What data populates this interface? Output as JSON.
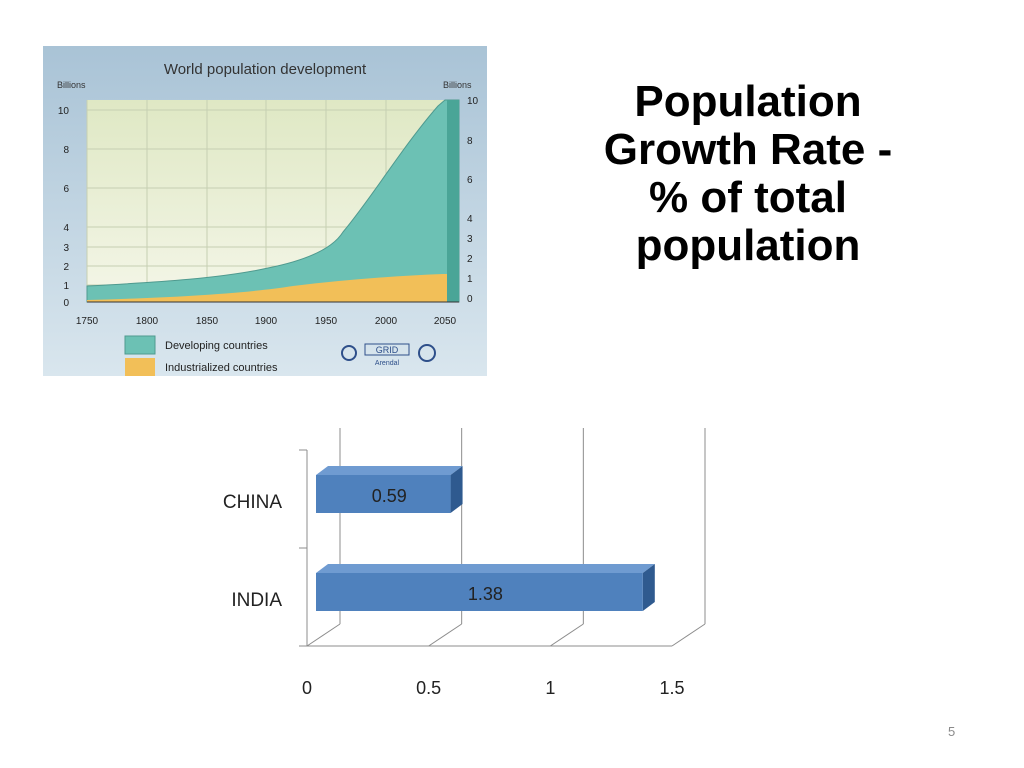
{
  "slide": {
    "title_lines": [
      "Population",
      "Growth Rate -",
      "% of total",
      "population"
    ],
    "page_number": "5"
  },
  "population_image": {
    "title": "World population development",
    "left_unit": "Billions",
    "right_unit": "Billions",
    "left_ticks": [
      "10",
      "8",
      "6",
      "4",
      "3",
      "2",
      "1",
      "0"
    ],
    "right_ticks": [
      "10",
      "8",
      "6",
      "4",
      "3",
      "2",
      "1",
      "0"
    ],
    "x_ticks": [
      "1750",
      "1800",
      "1850",
      "1900",
      "1950",
      "2000",
      "2050"
    ],
    "legend": [
      {
        "label": "Developing countries",
        "color": "#6cc1b4"
      },
      {
        "label": "Industrialized countries",
        "color": "#f2bf58"
      }
    ],
    "logo_text": "GRID",
    "logo_subtext": "Arendal"
  },
  "chart_data": {
    "type": "bar",
    "orientation": "horizontal",
    "style": "3d",
    "categories": [
      "CHINA",
      "INDIA"
    ],
    "values": [
      0.59,
      1.38
    ],
    "data_labels": [
      "0.59",
      "1.38"
    ],
    "x_ticks": [
      "0",
      "0.5",
      "1",
      "1.5"
    ],
    "xlim": [
      0,
      1.5
    ],
    "bar_color": "#4f81bd",
    "grid": true,
    "legend": "none"
  }
}
